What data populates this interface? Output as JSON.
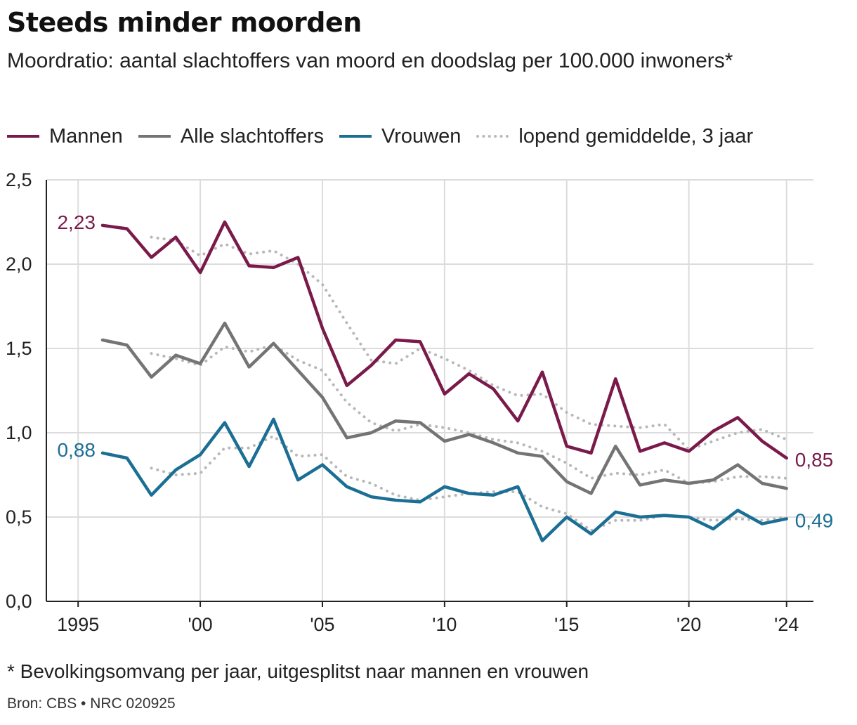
{
  "title": "Steeds minder moorden",
  "subtitle": "Moordratio: aantal slachtoffers van moord en doodslag per 100.000 inwoners*",
  "legend": [
    {
      "label": "Mannen",
      "color": "#7a1a4a",
      "style": "solid"
    },
    {
      "label": "Alle slachtoffers",
      "color": "#747474",
      "style": "solid"
    },
    {
      "label": "Vrouwen",
      "color": "#1b6e94",
      "style": "solid"
    },
    {
      "label": "lopend gemiddelde, 3 jaar",
      "color": "#b8b8b8",
      "style": "dotted"
    }
  ],
  "footnote": "* Bevolkingsomvang per jaar, uitgesplitst naar mannen en vrouwen",
  "source": "Bron: CBS • NRC 020925",
  "chart_data": {
    "type": "line",
    "title": "Steeds minder moorden",
    "subtitle": "Moordratio: aantal slachtoffers van moord en doodslag per 100.000 inwoners*",
    "xlabel": "",
    "ylabel": "",
    "x": [
      1996,
      1997,
      1998,
      1999,
      2000,
      2001,
      2002,
      2003,
      2004,
      2005,
      2006,
      2007,
      2008,
      2009,
      2010,
      2011,
      2012,
      2013,
      2014,
      2015,
      2016,
      2017,
      2018,
      2019,
      2020,
      2021,
      2022,
      2023,
      2024
    ],
    "xlim": [
      1993.7,
      2025.1
    ],
    "ylim": [
      0,
      2.5
    ],
    "x_ticks": [
      1995,
      2000,
      2005,
      2010,
      2015,
      2020,
      2024
    ],
    "x_tick_labels": [
      "1995",
      "'00",
      "'05",
      "'10",
      "'15",
      "'20",
      "'24"
    ],
    "y_ticks": [
      0,
      0.5,
      1.0,
      1.5,
      2.0,
      2.5
    ],
    "y_tick_labels": [
      "0,0",
      "0,5",
      "1,0",
      "1,5",
      "2,0",
      "2,5"
    ],
    "grid": true,
    "legend_position": "top",
    "series": [
      {
        "name": "Mannen",
        "color": "#7a1a4a",
        "style": "solid",
        "values": [
          2.23,
          2.21,
          2.04,
          2.16,
          1.95,
          2.25,
          1.99,
          1.98,
          2.04,
          1.62,
          1.28,
          1.4,
          1.55,
          1.54,
          1.23,
          1.35,
          1.26,
          1.07,
          1.36,
          0.92,
          0.88,
          1.32,
          0.89,
          0.94,
          0.89,
          1.01,
          1.09,
          0.95,
          0.85
        ]
      },
      {
        "name": "Alle slachtoffers",
        "color": "#747474",
        "style": "solid",
        "values": [
          1.55,
          1.52,
          1.33,
          1.46,
          1.41,
          1.65,
          1.39,
          1.53,
          1.37,
          1.21,
          0.97,
          1.0,
          1.07,
          1.06,
          0.95,
          0.99,
          0.94,
          0.88,
          0.86,
          0.71,
          0.64,
          0.92,
          0.69,
          0.72,
          0.7,
          0.72,
          0.81,
          0.7,
          0.67
        ]
      },
      {
        "name": "Vrouwen",
        "color": "#1b6e94",
        "style": "solid",
        "values": [
          0.88,
          0.85,
          0.63,
          0.78,
          0.87,
          1.06,
          0.8,
          1.08,
          0.72,
          0.81,
          0.68,
          0.62,
          0.6,
          0.59,
          0.68,
          0.64,
          0.63,
          0.68,
          0.36,
          0.5,
          0.4,
          0.53,
          0.5,
          0.51,
          0.5,
          0.43,
          0.54,
          0.46,
          0.49
        ]
      },
      {
        "name": "lopend gemiddelde, 3 jaar",
        "color": "#b8b8b8",
        "style": "dotted",
        "values": [
          null,
          null,
          2.16,
          2.14,
          2.05,
          2.12,
          2.06,
          2.08,
          2.0,
          1.88,
          1.65,
          1.43,
          1.41,
          1.5,
          1.44,
          1.37,
          1.28,
          1.22,
          1.23,
          1.12,
          1.05,
          1.04,
          1.03,
          1.05,
          0.9,
          0.95,
          1.0,
          1.02,
          0.96
        ]
      },
      {
        "name": "lopend gemiddelde, 3 jaar",
        "color": "#b8b8b8",
        "style": "dotted",
        "values": [
          null,
          null,
          1.47,
          1.44,
          1.4,
          1.51,
          1.48,
          1.52,
          1.43,
          1.37,
          1.18,
          1.06,
          1.01,
          1.05,
          1.03,
          1.0,
          0.96,
          0.94,
          0.89,
          0.82,
          0.73,
          0.76,
          0.75,
          0.78,
          0.7,
          0.71,
          0.74,
          0.74,
          0.73
        ]
      },
      {
        "name": "lopend gemiddelde, 3 jaar",
        "color": "#b8b8b8",
        "style": "dotted",
        "values": [
          null,
          null,
          0.79,
          0.75,
          0.76,
          0.91,
          0.91,
          0.98,
          0.86,
          0.87,
          0.74,
          0.7,
          0.63,
          0.6,
          0.62,
          0.64,
          0.65,
          0.65,
          0.56,
          0.52,
          0.42,
          0.48,
          0.48,
          0.51,
          0.5,
          0.48,
          0.49,
          0.48,
          0.5
        ]
      }
    ],
    "annotations": [
      {
        "text": "2,23",
        "series": "Mannen",
        "position": "start",
        "color": "#7a1a4a"
      },
      {
        "text": "0,88",
        "series": "Vrouwen",
        "position": "start",
        "color": "#1b6e94"
      },
      {
        "text": "0,85",
        "series": "Mannen",
        "position": "end",
        "color": "#7a1a4a"
      },
      {
        "text": "0,49",
        "series": "Vrouwen",
        "position": "end",
        "color": "#1b6e94"
      }
    ]
  }
}
